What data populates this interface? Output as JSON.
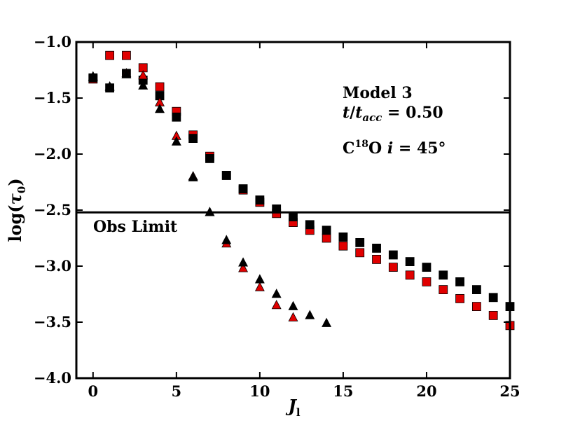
{
  "chart_data": {
    "type": "scatter",
    "title": "",
    "xlabel": "J_l",
    "ylabel": "log(τ_0)",
    "xlim": [
      -1,
      25
    ],
    "ylim": [
      -4.0,
      -1.0
    ],
    "x_ticks": [
      0,
      5,
      10,
      15,
      20,
      25
    ],
    "x_tick_labels": [
      "0",
      "5",
      "10",
      "15",
      "20",
      "25"
    ],
    "y_ticks": [
      -1.0,
      -1.5,
      -2.0,
      -2.5,
      -3.0,
      -3.5,
      -4.0
    ],
    "y_tick_labels": [
      "−1.0",
      "−1.5",
      "−2.0",
      "−2.5",
      "−3.0",
      "−3.5",
      "−4.0"
    ],
    "grid": false,
    "annotations": {
      "model": "Model 3",
      "time": "t/t_acc = 0.50",
      "species": "C18O i = 45°",
      "obs_limit_label": "Obs Limit"
    },
    "obs_limit": -2.52,
    "series": [
      {
        "marker": "square",
        "color": "#e00000",
        "points": [
          [
            0,
            -1.33
          ],
          [
            1,
            -1.12
          ],
          [
            2,
            -1.12
          ],
          [
            3,
            -1.23
          ],
          [
            4,
            -1.4
          ],
          [
            5,
            -1.62
          ],
          [
            6,
            -1.83
          ],
          [
            7,
            -2.02
          ],
          [
            8,
            -2.19
          ],
          [
            9,
            -2.32
          ],
          [
            10,
            -2.43
          ],
          [
            11,
            -2.53
          ],
          [
            12,
            -2.61
          ],
          [
            13,
            -2.68
          ],
          [
            14,
            -2.75
          ],
          [
            15,
            -2.82
          ],
          [
            16,
            -2.88
          ],
          [
            17,
            -2.94
          ],
          [
            18,
            -3.01
          ],
          [
            19,
            -3.08
          ],
          [
            20,
            -3.14
          ],
          [
            21,
            -3.21
          ],
          [
            22,
            -3.29
          ],
          [
            23,
            -3.36
          ],
          [
            24,
            -3.44
          ],
          [
            25,
            -3.53
          ]
        ]
      },
      {
        "marker": "square",
        "color": "#000000",
        "points": [
          [
            0,
            -1.32
          ],
          [
            1,
            -1.41
          ],
          [
            2,
            -1.28
          ],
          [
            3,
            -1.34
          ],
          [
            4,
            -1.48
          ],
          [
            5,
            -1.67
          ],
          [
            6,
            -1.86
          ],
          [
            7,
            -2.04
          ],
          [
            8,
            -2.19
          ],
          [
            9,
            -2.31
          ],
          [
            10,
            -2.41
          ],
          [
            11,
            -2.49
          ],
          [
            12,
            -2.56
          ],
          [
            13,
            -2.63
          ],
          [
            14,
            -2.68
          ],
          [
            15,
            -2.74
          ],
          [
            16,
            -2.79
          ],
          [
            17,
            -2.84
          ],
          [
            18,
            -2.9
          ],
          [
            19,
            -2.96
          ],
          [
            20,
            -3.01
          ],
          [
            21,
            -3.08
          ],
          [
            22,
            -3.14
          ],
          [
            23,
            -3.21
          ],
          [
            24,
            -3.28
          ],
          [
            25,
            -3.36
          ]
        ]
      },
      {
        "marker": "triangle",
        "color": "#e00000",
        "points": [
          [
            0,
            -1.31
          ],
          [
            1,
            -1.4
          ],
          [
            2,
            -1.28
          ],
          [
            3,
            -1.3
          ],
          [
            4,
            -1.54
          ],
          [
            5,
            -1.84
          ],
          [
            6,
            -2.2
          ],
          [
            7,
            -2.52
          ],
          [
            8,
            -2.8
          ],
          [
            9,
            -3.02
          ],
          [
            10,
            -3.19
          ],
          [
            11,
            -3.35
          ],
          [
            12,
            -3.46
          ]
        ]
      },
      {
        "marker": "triangle",
        "color": "#000000",
        "points": [
          [
            0,
            -1.31
          ],
          [
            1,
            -1.4
          ],
          [
            2,
            -1.29
          ],
          [
            3,
            -1.39
          ],
          [
            4,
            -1.6
          ],
          [
            5,
            -1.89
          ],
          [
            6,
            -2.21
          ],
          [
            7,
            -2.52
          ],
          [
            8,
            -2.77
          ],
          [
            9,
            -2.97
          ],
          [
            10,
            -3.12
          ],
          [
            11,
            -3.25
          ],
          [
            12,
            -3.36
          ],
          [
            13,
            -3.44
          ],
          [
            14,
            -3.51
          ]
        ]
      }
    ]
  }
}
